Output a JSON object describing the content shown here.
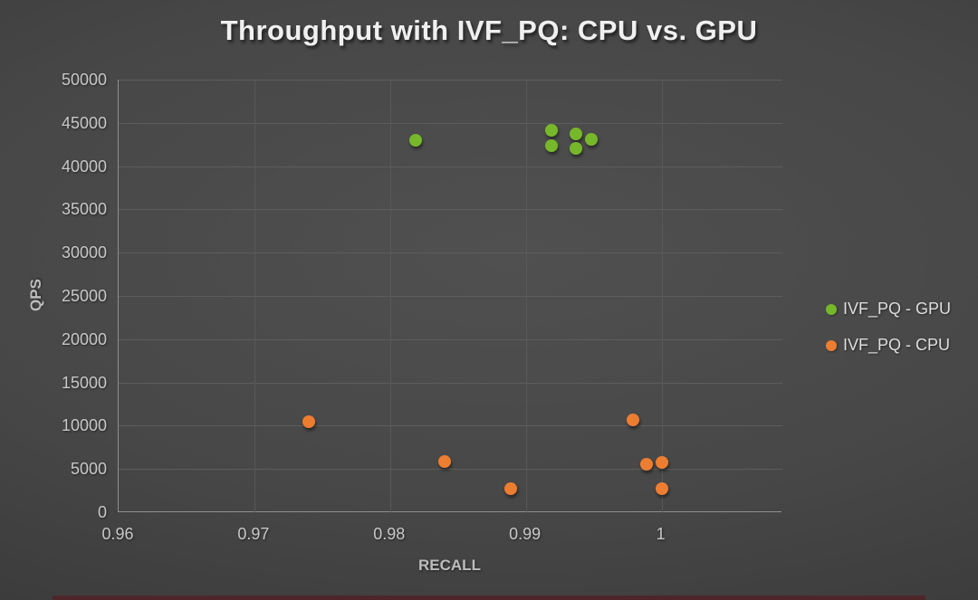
{
  "chart_data": {
    "type": "scatter",
    "title": "Throughput with IVF_PQ: CPU vs. GPU",
    "xlabel": "RECALL",
    "ylabel": "QPS",
    "grid": true,
    "legend_position": "right",
    "x_axis": {
      "min": 0.96,
      "max": 1.0089,
      "ticks": [
        {
          "v": 0.96,
          "label": "0.96"
        },
        {
          "v": 0.97,
          "label": "0.97"
        },
        {
          "v": 0.98,
          "label": "0.98"
        },
        {
          "v": 0.99,
          "label": "0.99"
        },
        {
          "v": 1,
          "label": "1"
        }
      ]
    },
    "y_axis": {
      "min": 0,
      "max": 50000,
      "ticks": [
        {
          "v": 0,
          "label": "0"
        },
        {
          "v": 5000,
          "label": "5000"
        },
        {
          "v": 10000,
          "label": "10000"
        },
        {
          "v": 15000,
          "label": "15000"
        },
        {
          "v": 20000,
          "label": "20000"
        },
        {
          "v": 25000,
          "label": "25000"
        },
        {
          "v": 30000,
          "label": "30000"
        },
        {
          "v": 35000,
          "label": "35000"
        },
        {
          "v": 40000,
          "label": "40000"
        },
        {
          "v": 45000,
          "label": "45000"
        },
        {
          "v": 50000,
          "label": "50000"
        }
      ]
    },
    "series": [
      {
        "name": "IVF_PQ - GPU",
        "color": "#76b82a",
        "points": [
          {
            "x": 0.9819,
            "y": 43000
          },
          {
            "x": 0.9919,
            "y": 44100
          },
          {
            "x": 0.9919,
            "y": 42400
          },
          {
            "x": 0.9937,
            "y": 43700
          },
          {
            "x": 0.9937,
            "y": 42000
          },
          {
            "x": 0.9948,
            "y": 43100
          }
        ]
      },
      {
        "name": "IVF_PQ - CPU",
        "color": "#ed7d31",
        "points": [
          {
            "x": 0.974,
            "y": 10500
          },
          {
            "x": 0.984,
            "y": 5900
          },
          {
            "x": 0.9889,
            "y": 2700
          },
          {
            "x": 0.9979,
            "y": 10700
          },
          {
            "x": 0.9989,
            "y": 5500
          },
          {
            "x": 1.0,
            "y": 5800
          },
          {
            "x": 1.0,
            "y": 2700
          }
        ]
      }
    ]
  },
  "footer_strip": {
    "color": "#4e262a"
  }
}
